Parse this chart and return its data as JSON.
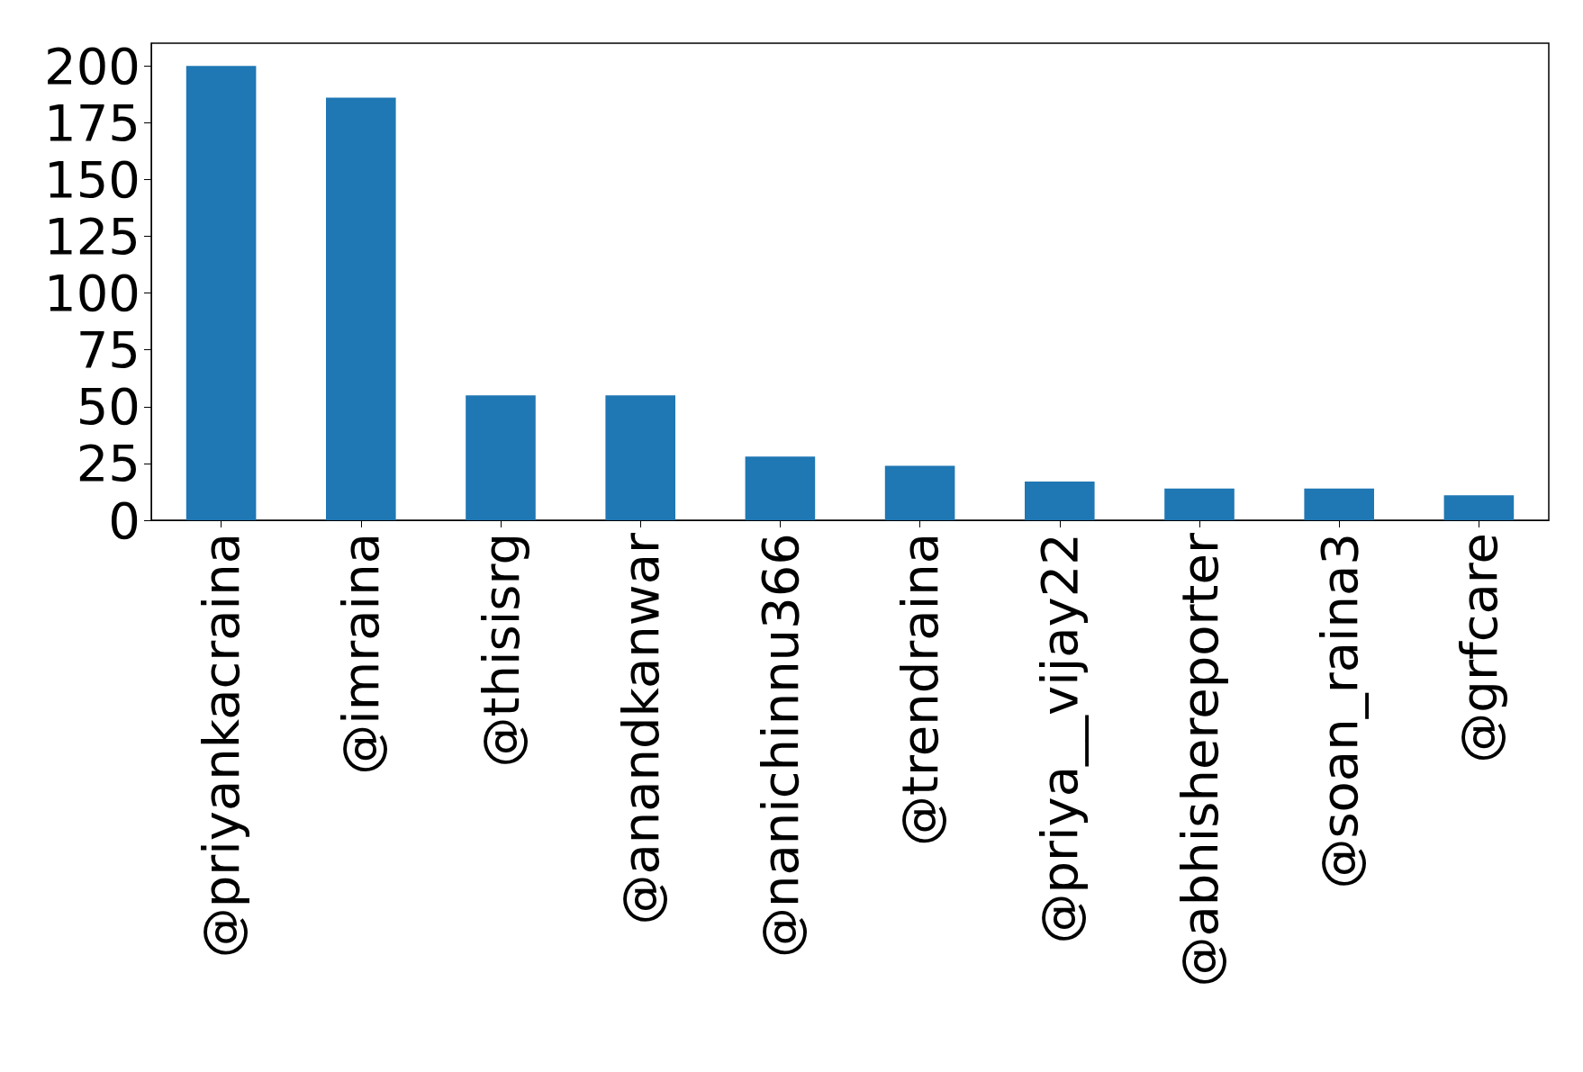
{
  "chart_data": {
    "type": "bar",
    "categories": [
      "@priyankacraina",
      "@imraina",
      "@thisisrg",
      "@anandkanwar",
      "@nanichinnu366",
      "@trendraina",
      "@priya__vijay22",
      "@abhishereporter",
      "@soan_raina3",
      "@grfcare"
    ],
    "values": [
      200,
      186,
      55,
      55,
      28,
      24,
      17,
      14,
      14,
      11
    ],
    "color": "#1f77b4",
    "ylim": [
      0,
      210
    ],
    "yticks": [
      0,
      25,
      50,
      75,
      100,
      125,
      150,
      175,
      200
    ],
    "grid": false
  }
}
